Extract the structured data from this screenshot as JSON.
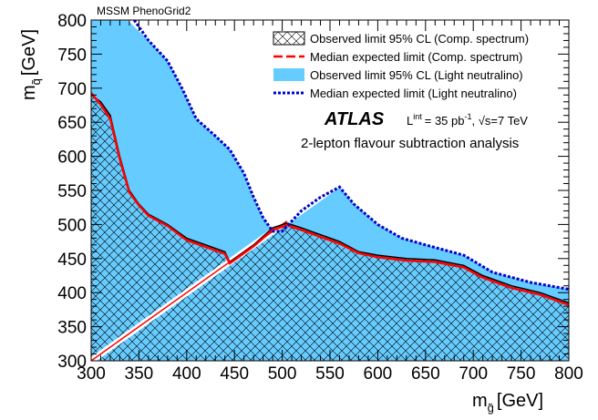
{
  "chart_data": {
    "type": "area",
    "corner_label": "MSSM PhenoGrid2",
    "xlabel": "m",
    "xlabel_sub": "g̃",
    "xlabel_unit": "[GeV]",
    "ylabel": "m",
    "ylabel_sub": "q̃",
    "ylabel_unit": "[GeV]",
    "xlim": [
      300,
      800
    ],
    "ylim": [
      300,
      800
    ],
    "x_ticks": [
      "300",
      "350",
      "400",
      "450",
      "500",
      "550",
      "600",
      "650",
      "700",
      "750",
      "800"
    ],
    "y_ticks": [
      "300",
      "350",
      "400",
      "450",
      "500",
      "550",
      "600",
      "650",
      "700",
      "750",
      "800"
    ],
    "legend": {
      "placement": "top-right",
      "entries": [
        "Observed limit 95% CL (Comp. spectrum)",
        "Median expected limit (Comp. spectrum)",
        "Observed limit 95% CL (Light neutralino)",
        "Median expected limit (Light neutralino)"
      ]
    },
    "experiment": "ATLAS",
    "lumi_text": "L",
    "lumi_sup": "int",
    "lumi_value": "= 35 pb",
    "lumi_unit_sup": "-1",
    "energy_text": ", √s=7 TeV",
    "analysis_text": "2-lepton flavour subtraction analysis",
    "colors": {
      "light_neutralino_fill": "#66ccff",
      "light_neutralino_line": "#0000cc",
      "comp_expected_line": "#ff0000",
      "comp_observed_edge": "#000000",
      "diagonal": "#ff0000"
    },
    "series": [
      {
        "name": "Observed limit 95% CL (Light neutralino)",
        "x": [
          300,
          338,
          360,
          380,
          395,
          410,
          430,
          445,
          460,
          470,
          480,
          490,
          500,
          520,
          540,
          560,
          575,
          600,
          625,
          650,
          690,
          720,
          760,
          800
        ],
        "y": [
          800,
          800,
          770,
          740,
          700,
          655,
          630,
          610,
          575,
          540,
          510,
          490,
          490,
          520,
          540,
          555,
          530,
          500,
          480,
          470,
          455,
          430,
          415,
          405
        ]
      },
      {
        "name": "Median expected limit (Light neutralino)",
        "x": [
          345,
          360,
          380,
          395,
          410,
          430,
          445,
          460,
          470,
          480,
          490,
          500,
          520,
          540,
          560,
          575,
          600,
          625,
          650,
          690,
          720,
          760,
          800
        ],
        "y": [
          800,
          770,
          740,
          700,
          655,
          630,
          610,
          575,
          540,
          510,
          490,
          490,
          520,
          540,
          555,
          530,
          500,
          480,
          470,
          455,
          430,
          415,
          405
        ]
      },
      {
        "name": "Observed limit 95% CL (Comp. spectrum)",
        "x": [
          300,
          310,
          320,
          330,
          340,
          350,
          360,
          380,
          400,
          420,
          440,
          445,
          450,
          470,
          490,
          505,
          520,
          540,
          560,
          580,
          600,
          630,
          660,
          690,
          710,
          740,
          770,
          800
        ],
        "y": [
          690,
          680,
          660,
          600,
          550,
          530,
          515,
          500,
          480,
          470,
          460,
          445,
          450,
          470,
          495,
          502,
          495,
          485,
          475,
          460,
          455,
          450,
          448,
          440,
          425,
          410,
          400,
          385
        ]
      },
      {
        "name": "Median expected limit (Comp. spectrum)",
        "x": [
          300,
          310,
          320,
          330,
          340,
          350,
          360,
          380,
          400,
          420,
          440,
          445,
          450,
          470,
          490,
          505,
          520,
          540,
          560,
          580,
          600,
          630,
          660,
          690,
          710,
          740,
          770,
          800
        ],
        "y": [
          693,
          676,
          655,
          596,
          547,
          528,
          513,
          498,
          477,
          467,
          457,
          443,
          448,
          468,
          492,
          499,
          492,
          482,
          472,
          458,
          452,
          447,
          445,
          437,
          422,
          407,
          397,
          382
        ]
      }
    ]
  }
}
